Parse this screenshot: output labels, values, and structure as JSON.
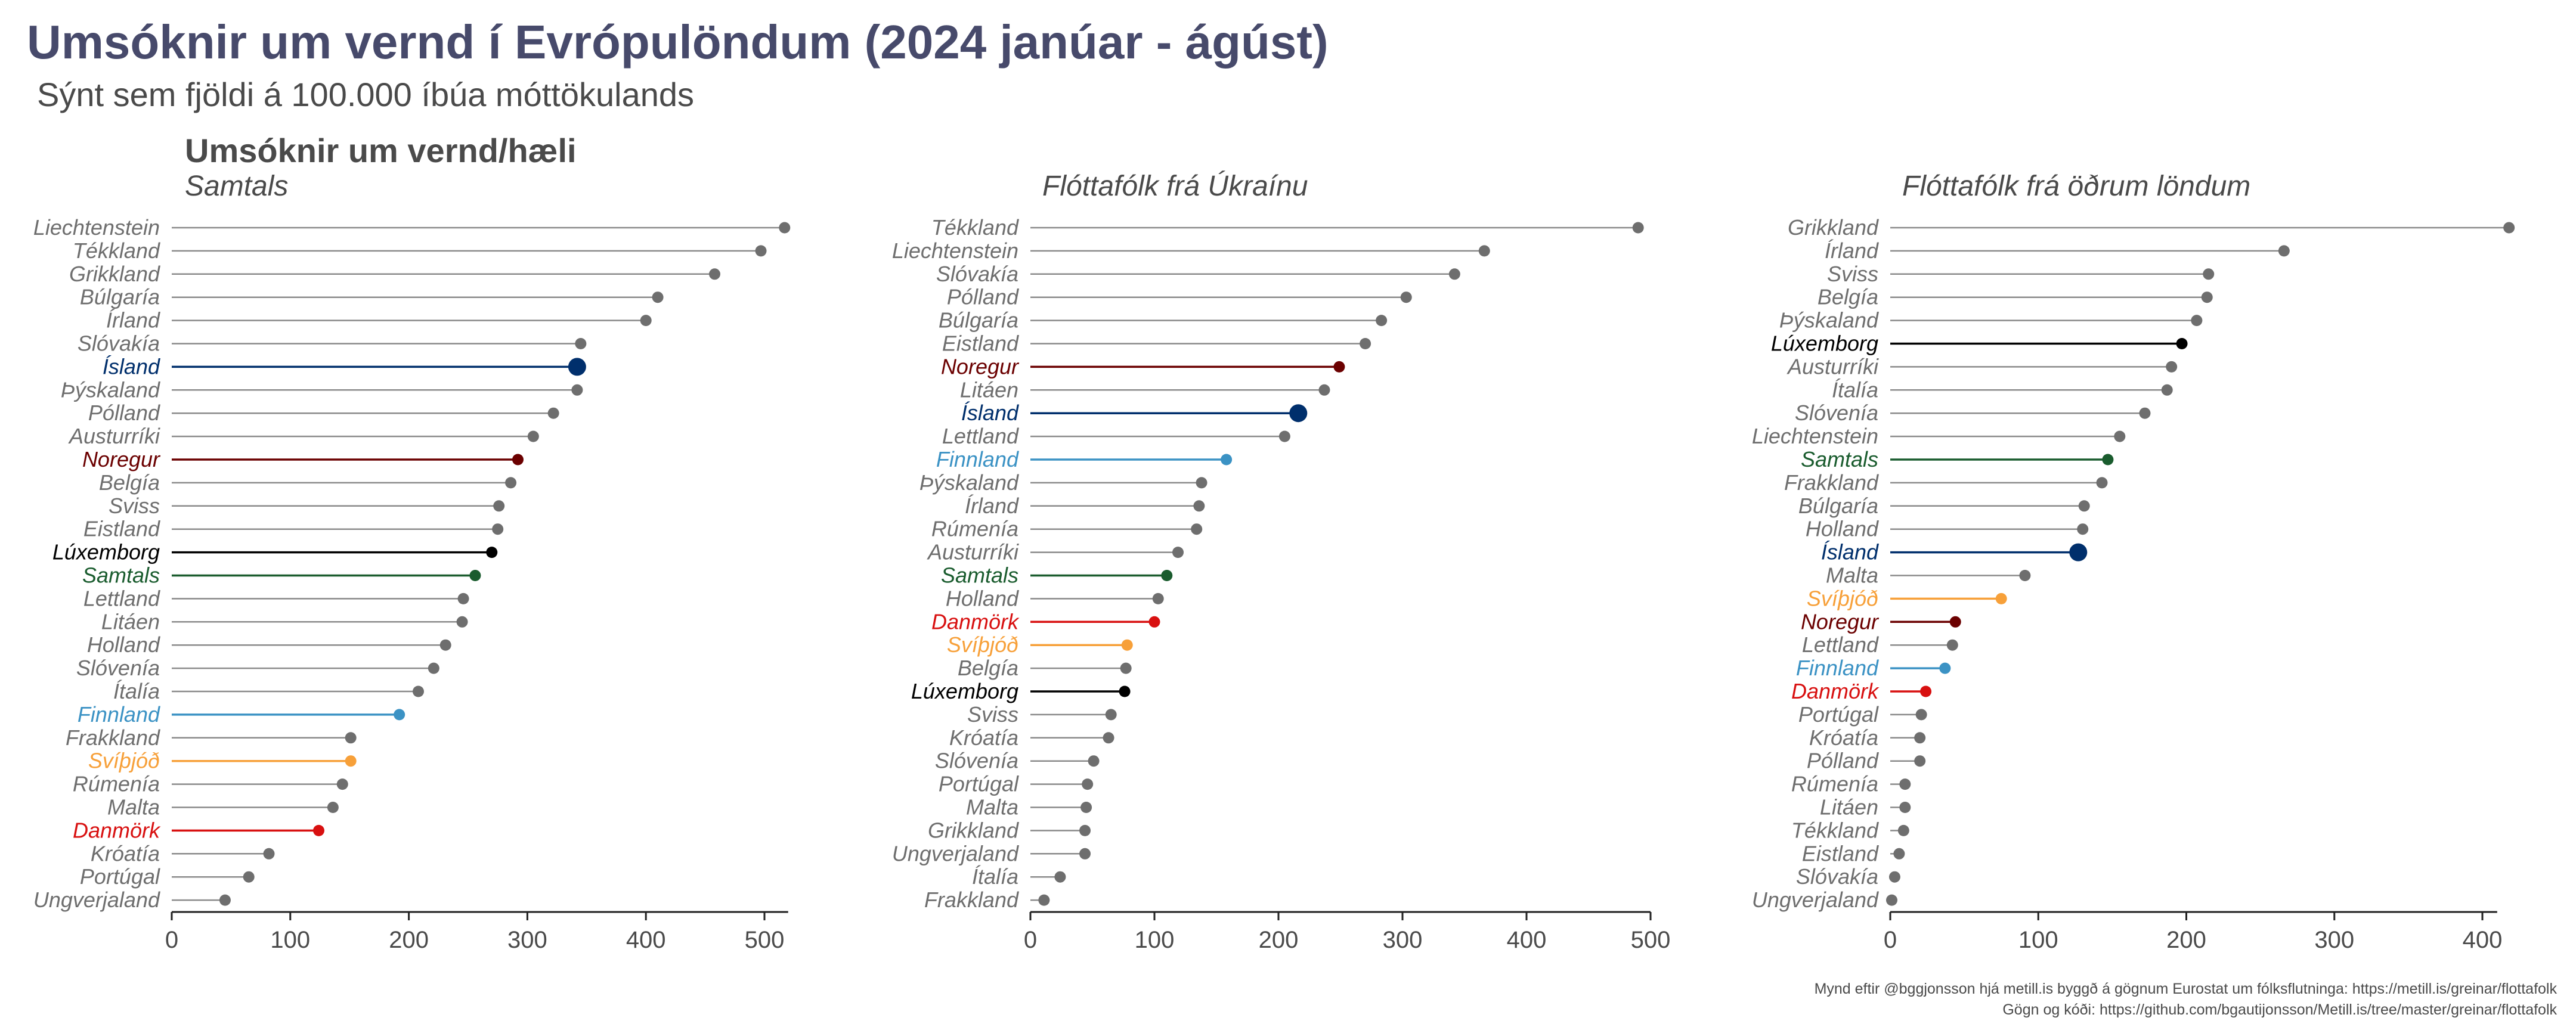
{
  "title": "Umsóknir um vernd í Evrópulöndum (2024 janúar - ágúst)",
  "subtitle": "Sýnt sem fjöldi á 100.000 íbúa móttökulands",
  "caption_line1": "Mynd eftir @bggjonsson hjá metill.is byggð á gögnum Eurostat um fólksflutninga: https://metill.is/greinar/flottafolk",
  "caption_line2": "Gögn og kóði: https://github.com/bgautijonsson/Metill.is/tree/master/greinar/flottafolk",
  "colors": {
    "default": "#6e6e6e",
    "Ísland": "#002f6c",
    "Noregur": "#6b0000",
    "Finnland": "#3b92c4",
    "Svíþjóð": "#f7a039",
    "Danmörk": "#d81010",
    "Lúxemborg": "#000000",
    "Samtals": "#1a5c2e"
  },
  "chart_data": [
    {
      "type": "lollipop",
      "title": "Umsóknir um vernd/hæli",
      "subtitle": "Samtals",
      "xlim": [
        0,
        520
      ],
      "xticks": [
        0,
        100,
        200,
        300,
        400,
        500
      ],
      "categories": [
        "Liechtenstein",
        "Tékkland",
        "Grikkland",
        "Búlgaría",
        "Írland",
        "Slóvakía",
        "Ísland",
        "Þýskaland",
        "Pólland",
        "Austurríki",
        "Noregur",
        "Belgía",
        "Sviss",
        "Eistland",
        "Lúxemborg",
        "Samtals",
        "Lettland",
        "Litáen",
        "Holland",
        "Slóvenía",
        "Ítalía",
        "Finnland",
        "Frakkland",
        "Svíþjóð",
        "Rúmenía",
        "Malta",
        "Danmörk",
        "Króatía",
        "Portúgal",
        "Ungverjaland"
      ],
      "values": [
        517,
        497,
        458,
        410,
        400,
        345,
        342,
        342,
        322,
        305,
        292,
        286,
        276,
        275,
        270,
        256,
        246,
        245,
        231,
        221,
        208,
        192,
        151,
        151,
        144,
        136,
        124,
        82,
        65,
        45
      ]
    },
    {
      "type": "lollipop",
      "title": "",
      "subtitle": "Flóttafólk frá Úkraínu",
      "xlim": [
        0,
        500
      ],
      "xticks": [
        0,
        100,
        200,
        300,
        400,
        500
      ],
      "categories": [
        "Tékkland",
        "Liechtenstein",
        "Slóvakía",
        "Pólland",
        "Búlgaría",
        "Eistland",
        "Noregur",
        "Litáen",
        "Ísland",
        "Lettland",
        "Finnland",
        "Þýskaland",
        "Írland",
        "Rúmenía",
        "Austurríki",
        "Samtals",
        "Holland",
        "Danmörk",
        "Svíþjóð",
        "Belgía",
        "Lúxemborg",
        "Sviss",
        "Króatía",
        "Slóvenía",
        "Portúgal",
        "Malta",
        "Grikkland",
        "Ungverjaland",
        "Ítalía",
        "Frakkland"
      ],
      "values": [
        490,
        366,
        342,
        303,
        283,
        270,
        249,
        237,
        216,
        205,
        158,
        138,
        136,
        134,
        119,
        110,
        103,
        100,
        78,
        77,
        76,
        65,
        63,
        51,
        46,
        45,
        44,
        44,
        24,
        11
      ]
    },
    {
      "type": "lollipop",
      "title": "",
      "subtitle": "Flóttafólk frá öðrum löndum",
      "xlim": [
        0,
        410
      ],
      "xticks": [
        0,
        100,
        200,
        300,
        400
      ],
      "categories": [
        "Grikkland",
        "Írland",
        "Sviss",
        "Belgía",
        "Þýskaland",
        "Lúxemborg",
        "Austurríki",
        "Ítalía",
        "Slóvenía",
        "Liechtenstein",
        "Samtals",
        "Frakkland",
        "Búlgaría",
        "Holland",
        "Ísland",
        "Malta",
        "Svíþjóð",
        "Noregur",
        "Lettland",
        "Finnland",
        "Danmörk",
        "Portúgal",
        "Króatía",
        "Pólland",
        "Rúmenía",
        "Litáen",
        "Tékkland",
        "Eistland",
        "Slóvakía",
        "Ungverjaland"
      ],
      "values": [
        418,
        266,
        215,
        214,
        207,
        197,
        190,
        187,
        172,
        155,
        147,
        143,
        131,
        130,
        127,
        91,
        75,
        44,
        42,
        37,
        24,
        21,
        20,
        20,
        10,
        10,
        9,
        6,
        3,
        1
      ]
    }
  ]
}
